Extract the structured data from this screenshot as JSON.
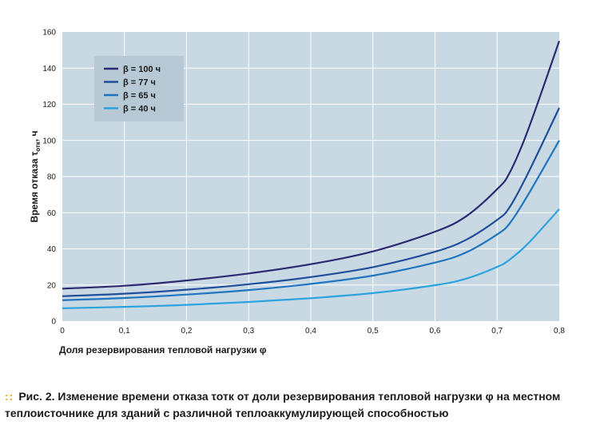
{
  "chart_data": {
    "type": "line",
    "title": "",
    "xlabel": "Доля резервирования тепловой нагрузки φ",
    "ylabel_main": "Время отказа τ",
    "ylabel_sub": "отк",
    "ylabel_unit": ", ч",
    "xlim": [
      0,
      0.8
    ],
    "ylim": [
      0,
      160
    ],
    "x_ticks": [
      "0",
      "0,1",
      "0,2",
      "0,3",
      "0,4",
      "0,5",
      "0,6",
      "0,7",
      "0,8"
    ],
    "y_ticks": [
      "0",
      "20",
      "40",
      "60",
      "80",
      "100",
      "120",
      "140",
      "160"
    ],
    "grid": true,
    "legend_position": "top-left",
    "x": [
      0,
      0.1,
      0.2,
      0.3,
      0.4,
      0.5,
      0.6,
      0.65,
      0.7,
      0.72,
      0.75,
      0.8
    ],
    "series": [
      {
        "name": "β = 100 ч",
        "color": "#2b2a72",
        "values": [
          18,
          19.6,
          22.5,
          26.4,
          31.5,
          38.6,
          49.5,
          58,
          73,
          82,
          106,
          155
        ]
      },
      {
        "name": "β = 77 ч",
        "color": "#1f4e9a",
        "values": [
          13.8,
          15.2,
          17.4,
          20.4,
          24.4,
          29.9,
          38.4,
          45,
          56,
          63,
          82,
          118
        ]
      },
      {
        "name": "β = 65 ч",
        "color": "#1f75c0",
        "values": [
          11.6,
          12.8,
          14.7,
          17.2,
          20.6,
          25.2,
          32.4,
          38,
          48,
          54,
          70,
          100
        ]
      },
      {
        "name": "β = 40 ч",
        "color": "#2aa3df",
        "values": [
          7.1,
          7.9,
          9.0,
          10.6,
          12.7,
          15.5,
          19.9,
          23.5,
          30,
          34,
          43,
          62
        ]
      }
    ]
  },
  "caption": {
    "dots": "::",
    "figure_label": "Рис. 2.",
    "text": "Изменение времени отказа τотк от доли резервирования тепловой нагрузки φ на местном теплоисточнике для зданий с различной теплоаккумулирующей способностью"
  },
  "colors": {
    "plot_background": "#c9d9e3",
    "grid": "#ffffff",
    "legend_background": "#b7c9d5",
    "caption_dots": "#e6a23c"
  }
}
